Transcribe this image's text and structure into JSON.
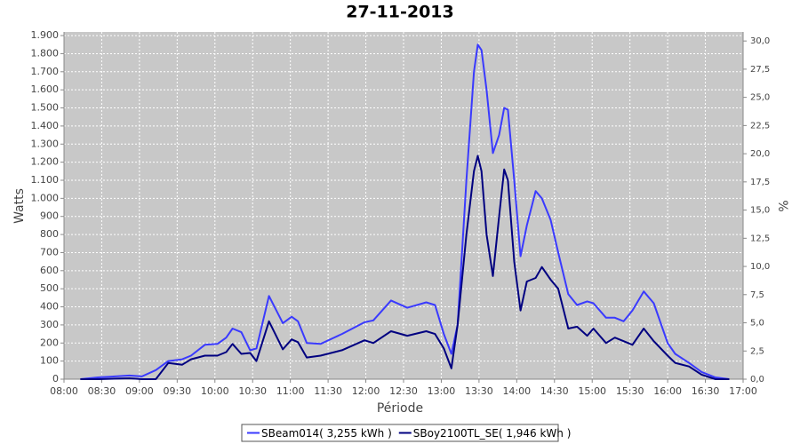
{
  "chart_data": {
    "type": "line",
    "title": "27-11-2013",
    "xlabel": "Période",
    "ylabel": "Watts",
    "y2label": "%",
    "x": [
      "08:13",
      "08:27",
      "08:52",
      "09:02",
      "09:13",
      "09:23",
      "09:34",
      "09:41",
      "09:52",
      "10:02",
      "10:09",
      "10:14",
      "10:21",
      "10:28",
      "10:33",
      "10:43",
      "10:54",
      "11:01",
      "11:06",
      "11:13",
      "11:24",
      "11:41",
      "11:59",
      "12:06",
      "12:20",
      "12:33",
      "12:48",
      "12:55",
      "13:02",
      "13:08",
      "13:13",
      "13:20",
      "13:26",
      "13:29",
      "13:32",
      "13:36",
      "13:41",
      "13:46",
      "13:50",
      "13:53",
      "13:58",
      "14:03",
      "14:08",
      "14:15",
      "14:20",
      "14:27",
      "14:33",
      "14:41",
      "14:48",
      "14:56",
      "15:01",
      "15:11",
      "15:18",
      "15:25",
      "15:32",
      "15:41",
      "15:49",
      "16:00",
      "16:06",
      "16:17",
      "16:27",
      "16:38",
      "16:49"
    ],
    "series": [
      {
        "name": "SBeam014( 3,255 kWh )",
        "color": "#3a3aff",
        "values": [
          0,
          10,
          20,
          15,
          50,
          100,
          110,
          130,
          190,
          195,
          230,
          280,
          260,
          160,
          170,
          460,
          310,
          345,
          320,
          200,
          195,
          250,
          315,
          325,
          435,
          395,
          425,
          410,
          250,
          140,
          300,
          1100,
          1700,
          1850,
          1820,
          1600,
          1250,
          1350,
          1500,
          1490,
          1100,
          680,
          850,
          1040,
          1000,
          880,
          700,
          470,
          410,
          430,
          420,
          340,
          340,
          320,
          380,
          485,
          420,
          200,
          140,
          90,
          40,
          10,
          0
        ]
      },
      {
        "name": "SBoy2100TL_SE( 1,946 kWh )",
        "color": "#000080",
        "values": [
          0,
          0,
          5,
          0,
          0,
          90,
          80,
          110,
          130,
          130,
          150,
          195,
          140,
          145,
          100,
          320,
          165,
          220,
          205,
          120,
          130,
          160,
          215,
          200,
          265,
          240,
          265,
          250,
          170,
          60,
          300,
          800,
          1150,
          1235,
          1150,
          800,
          570,
          900,
          1160,
          1100,
          650,
          380,
          540,
          560,
          620,
          550,
          500,
          280,
          290,
          240,
          280,
          200,
          230,
          210,
          190,
          280,
          210,
          130,
          90,
          70,
          25,
          0,
          0
        ]
      }
    ],
    "xlim": [
      "08:00",
      "17:00"
    ],
    "xticks": [
      "08:00",
      "08:30",
      "09:00",
      "09:30",
      "10:00",
      "10:30",
      "11:00",
      "11:30",
      "12:00",
      "12:30",
      "13:00",
      "13:30",
      "14:00",
      "14:30",
      "15:00",
      "15:30",
      "16:00",
      "16:30",
      "17:00"
    ],
    "ylim": [
      0,
      1920
    ],
    "yticks": [
      0,
      100,
      200,
      300,
      400,
      500,
      600,
      700,
      800,
      900,
      {
        "value": 1000,
        "label": "1.000"
      },
      {
        "value": 1100,
        "label": "1.100"
      },
      {
        "value": 1200,
        "label": "1.200"
      },
      {
        "value": 1300,
        "label": "1.300"
      },
      {
        "value": 1400,
        "label": "1.400"
      },
      {
        "value": 1500,
        "label": "1.500"
      },
      {
        "value": 1600,
        "label": "1.600"
      },
      {
        "value": 1700,
        "label": "1.700"
      },
      {
        "value": 1800,
        "label": "1.800"
      },
      {
        "value": 1900,
        "label": "1.900"
      }
    ],
    "y2lim": [
      0,
      30.8
    ],
    "y2ticks": [
      {
        "value": 0,
        "label": "0,0"
      },
      {
        "value": 2.5,
        "label": "2,5"
      },
      {
        "value": 5,
        "label": "5,0"
      },
      {
        "value": 7.5,
        "label": "7,5"
      },
      {
        "value": 10,
        "label": "10,0"
      },
      {
        "value": 12.5,
        "label": "12,5"
      },
      {
        "value": 15,
        "label": "15,0"
      },
      {
        "value": 17.5,
        "label": "17,5"
      },
      {
        "value": 20,
        "label": "20,0"
      },
      {
        "value": 22.5,
        "label": "22,5"
      },
      {
        "value": 25,
        "label": "25,0"
      },
      {
        "value": 27.5,
        "label": "27,5"
      },
      {
        "value": 30,
        "label": "30,0"
      }
    ],
    "grid": true,
    "legend": "bottom"
  }
}
